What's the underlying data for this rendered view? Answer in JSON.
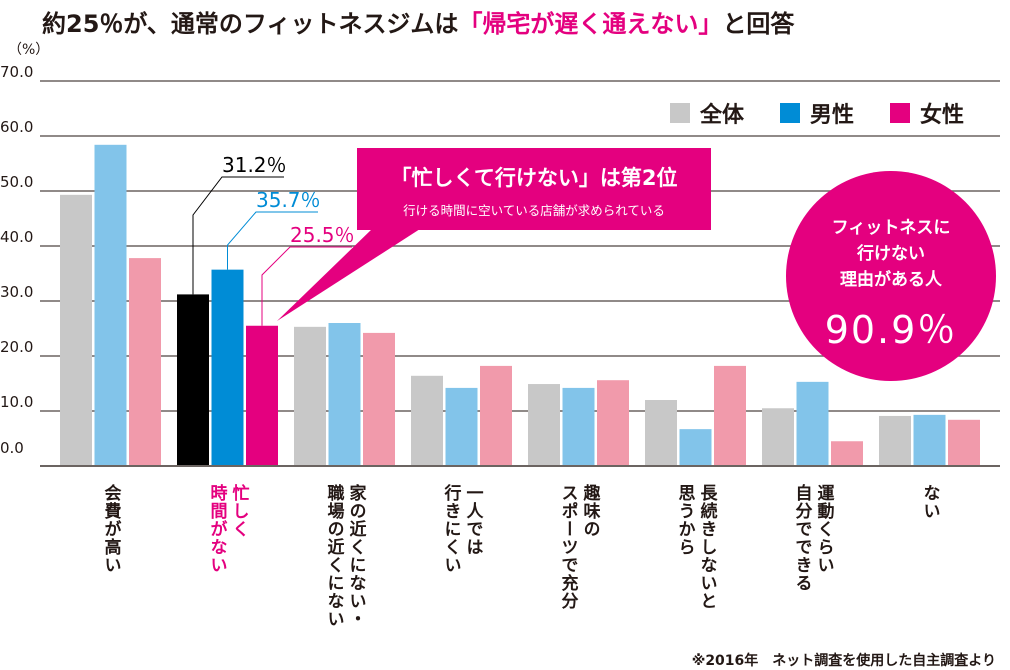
{
  "title": {
    "pre": "約25％が、通常のフィットネスジムは",
    "highlight": "「帰宅が遅く通えない」",
    "post": "と回答"
  },
  "colors": {
    "all": "#c8c8c8",
    "male": "#82c4ea",
    "female": "#f19aab",
    "all_hl": "#000000",
    "male_hl": "#008cd6",
    "female_hl": "#e4007f",
    "accent": "#e4007f",
    "grid": "#6b6461"
  },
  "callout": {
    "main": "「忙しくて行けない」は第2位",
    "sub": "行ける時間に空いている店舗が求められている"
  },
  "circle": {
    "text": [
      "フィットネスに",
      "行けない",
      "理由がある人"
    ],
    "value": "90.9％"
  },
  "footnote": "※2016年　ネット調査を使用した自主調査より",
  "chart_data": {
    "type": "bar",
    "ylabel": "（%）",
    "ylim": [
      0,
      70
    ],
    "yticks": [
      "70.0",
      "60.0",
      "50.0",
      "40.0",
      "30.0",
      "20.0",
      "10.0",
      "0.0"
    ],
    "grid": true,
    "legend_placement": "top-right",
    "categories": [
      "会費が高い",
      "忙しく\n時間がない",
      "家の近くにない・\n職場の近くにない",
      "一人では\n行きにくい",
      "趣味の\nスポーツで充分",
      "長続きしないと\n思うから",
      "運動くらい\n自分でできる",
      "ない"
    ],
    "highlight_category": 1,
    "series": [
      {
        "name": "全体",
        "values": [
          49.3,
          31.2,
          25.3,
          16.4,
          14.9,
          12.0,
          10.5,
          9.1
        ]
      },
      {
        "name": "男性",
        "values": [
          58.4,
          35.7,
          26.0,
          14.2,
          14.2,
          6.7,
          15.3,
          9.3
        ]
      },
      {
        "name": "女性",
        "values": [
          37.8,
          25.5,
          24.2,
          18.2,
          15.6,
          18.2,
          4.5,
          8.4
        ]
      }
    ],
    "annotations": [
      "31.2％",
      "35.7％",
      "25.5％"
    ]
  }
}
